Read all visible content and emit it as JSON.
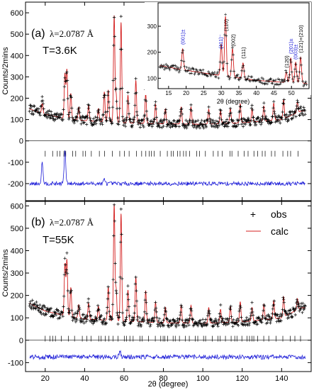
{
  "chart_data": [
    {
      "type": "scatter",
      "panel_label": "(a)",
      "wavelength_label": "λ=2.0787 Å",
      "temperature_label": "T=3.6K",
      "ylabel": "Counts/2mins",
      "xlim": [
        10,
        155
      ],
      "ylim": [
        -280,
        650
      ],
      "yticks": [
        -200,
        -100,
        0,
        100,
        200,
        300,
        400,
        500,
        600
      ],
      "background": [
        [
          12,
          150
        ],
        [
          20,
          125
        ],
        [
          30,
          105
        ],
        [
          40,
          95
        ],
        [
          60,
          85
        ],
        [
          80,
          80
        ],
        [
          100,
          78
        ],
        [
          120,
          85
        ],
        [
          140,
          100
        ],
        [
          150,
          140
        ]
      ],
      "peaks": [
        [
          18.5,
          45
        ],
        [
          30,
          210
        ],
        [
          31,
          230
        ],
        [
          33,
          120
        ],
        [
          37,
          60
        ],
        [
          42,
          70
        ],
        [
          47,
          60
        ],
        [
          50,
          140
        ],
        [
          52,
          150
        ],
        [
          55,
          500
        ],
        [
          56,
          130
        ],
        [
          58.5,
          470
        ],
        [
          62,
          130
        ],
        [
          66,
          200
        ],
        [
          71,
          140
        ],
        [
          76,
          90
        ],
        [
          81,
          70
        ],
        [
          89,
          80
        ],
        [
          94,
          80
        ],
        [
          103,
          70
        ],
        [
          109,
          60
        ],
        [
          114,
          70
        ],
        [
          119,
          90
        ],
        [
          125,
          60
        ],
        [
          131,
          70
        ],
        [
          136,
          80
        ],
        [
          141,
          90
        ],
        [
          148,
          50
        ]
      ],
      "difference_spikes": [
        [
          18.5,
          100
        ],
        [
          30,
          150
        ],
        [
          50,
          20
        ]
      ],
      "difference_offset": -200,
      "series": [
        {
          "name": "obs",
          "color": "#000000"
        },
        {
          "name": "calc",
          "color": "#d42020"
        },
        {
          "name": "diff",
          "color": "#1f1fd8"
        },
        {
          "name": "bragg",
          "color": "#000000"
        }
      ],
      "inset": {
        "xlabel": "2θ (degree)",
        "xlim": [
          12,
          55
        ],
        "ylim": [
          60,
          390
        ],
        "xticks": [
          15,
          20,
          25,
          30,
          35,
          40,
          45,
          50
        ],
        "yticks": [
          100,
          200,
          300
        ],
        "annotations": [
          {
            "text": "(001)±",
            "x": 19,
            "color": "#1f1fd8"
          },
          {
            "text": "(111)⁻",
            "x": 29.8,
            "color": "#1f1fd8"
          },
          {
            "text": "(110)",
            "x": 31.3,
            "color": "#000000"
          },
          {
            "text": "(002)",
            "x": 33.3,
            "color": "#000000"
          },
          {
            "text": "(111)",
            "x": 36.2,
            "color": "#000000"
          },
          {
            "text": "(120)",
            "x": 48.5,
            "color": "#000000"
          },
          {
            "text": "(201)±",
            "x": 49.8,
            "color": "#1f1fd8"
          },
          {
            "text": "(003)±",
            "x": 51.1,
            "color": "#1f1fd8"
          },
          {
            "text": "(121)+(210)",
            "x": 52.6,
            "color": "#000000"
          }
        ]
      }
    },
    {
      "type": "scatter",
      "panel_label": "(b)",
      "wavelength_label": "λ=2.0787 Å",
      "temperature_label": "T=55K",
      "ylabel": "Counts/2mins",
      "xlabel": "2θ (degree)",
      "xlim": [
        10,
        155
      ],
      "ylim": [
        -140,
        620
      ],
      "yticks": [
        -100,
        0,
        100,
        200,
        300,
        400,
        500,
        600
      ],
      "xticks": [
        20,
        40,
        60,
        80,
        100,
        120,
        140
      ],
      "background": [
        [
          12,
          165
        ],
        [
          20,
          130
        ],
        [
          30,
          110
        ],
        [
          40,
          95
        ],
        [
          60,
          85
        ],
        [
          80,
          78
        ],
        [
          100,
          75
        ],
        [
          120,
          82
        ],
        [
          140,
          100
        ],
        [
          150,
          145
        ]
      ],
      "peaks": [
        [
          30,
          230
        ],
        [
          31,
          250
        ],
        [
          33,
          130
        ],
        [
          37,
          60
        ],
        [
          42,
          70
        ],
        [
          47,
          60
        ],
        [
          52,
          150
        ],
        [
          55,
          520
        ],
        [
          56,
          140
        ],
        [
          58.5,
          480
        ],
        [
          62,
          140
        ],
        [
          66,
          200
        ],
        [
          71,
          140
        ],
        [
          76,
          90
        ],
        [
          81,
          70
        ],
        [
          89,
          80
        ],
        [
          94,
          80
        ],
        [
          103,
          70
        ],
        [
          109,
          60
        ],
        [
          114,
          70
        ],
        [
          119,
          90
        ],
        [
          125,
          60
        ],
        [
          131,
          70
        ],
        [
          136,
          80
        ],
        [
          141,
          90
        ],
        [
          148,
          50
        ]
      ],
      "difference_spikes": [
        [
          58,
          30
        ]
      ],
      "difference_offset": -75,
      "legend_position": "top-right",
      "series": [
        {
          "name": "obs",
          "color": "#000000"
        },
        {
          "name": "calc",
          "color": "#d42020"
        },
        {
          "name": "diff",
          "color": "#1f1fd8"
        },
        {
          "name": "bragg",
          "color": "#000000"
        }
      ]
    }
  ]
}
